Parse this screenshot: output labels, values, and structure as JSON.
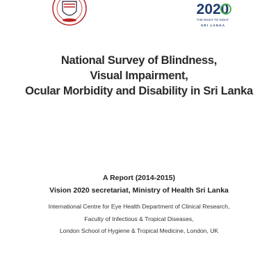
{
  "logos": {
    "right": {
      "numeral": "2020",
      "tagline": "THE RIGHT TO SIGHT",
      "country": "S R I   L A N K A"
    }
  },
  "title": [
    "National Survey of Blindness,",
    "Visual Impairment,",
    "Ocular Morbidity and Disability in Sri Lanka"
  ],
  "report": {
    "subtitle": "A Report (2014-2015)",
    "secretariat": "Vision 2020 secretariat, Ministry of Health Sri Lanka",
    "affiliation": [
      "International Centre for Eye Health Department of Clinical Research,",
      "Faculty of Infectious & Tropical Diseases,",
      "London School of Hygiene & Tropical Medicine, London, UK"
    ]
  }
}
